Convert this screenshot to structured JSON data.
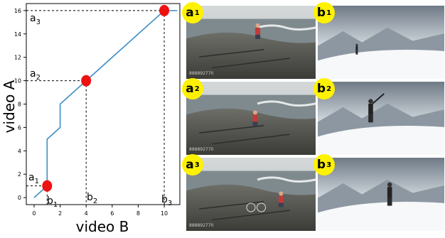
{
  "chart_data": {
    "type": "line",
    "xlabel": "video B",
    "ylabel": "video A",
    "xlim": [
      -0.6,
      11.2
    ],
    "ylim": [
      -0.6,
      16.6
    ],
    "xticks": [
      0,
      2,
      4,
      6,
      8,
      10
    ],
    "yticks": [
      0,
      2,
      4,
      6,
      8,
      10,
      12,
      14,
      16
    ],
    "grid": false,
    "line_color": "#3d8ec4",
    "marker_color": "#ee1111",
    "series": [
      {
        "x": [
          0,
          1,
          1,
          2,
          2,
          4,
          10,
          11
        ],
        "y": [
          0,
          1,
          5,
          6,
          8,
          10,
          16,
          16
        ]
      }
    ],
    "keypoints": [
      {
        "x": 1,
        "y": 1,
        "a_label": "a",
        "a_sub": "1",
        "b_label": "b",
        "b_sub": "1"
      },
      {
        "x": 4,
        "y": 10,
        "a_label": "a",
        "a_sub": "2",
        "b_label": "b",
        "b_sub": "2"
      },
      {
        "x": 10,
        "y": 16,
        "a_label": "a",
        "a_sub": "3",
        "b_label": "b",
        "b_sub": "3"
      }
    ]
  },
  "photos": [
    {
      "label": "a",
      "sub": "1",
      "scene": "rocks",
      "watermark": "888892770"
    },
    {
      "label": "b",
      "sub": "1",
      "scene": "snow",
      "watermark": ""
    },
    {
      "label": "a",
      "sub": "2",
      "scene": "rocks",
      "watermark": "888892770"
    },
    {
      "label": "b",
      "sub": "2",
      "scene": "snow",
      "watermark": ""
    },
    {
      "label": "a",
      "sub": "3",
      "scene": "rocks",
      "watermark": "888892770"
    },
    {
      "label": "b",
      "sub": "3",
      "scene": "snow",
      "watermark": ""
    }
  ],
  "colors": {
    "badge": "#fff200"
  }
}
